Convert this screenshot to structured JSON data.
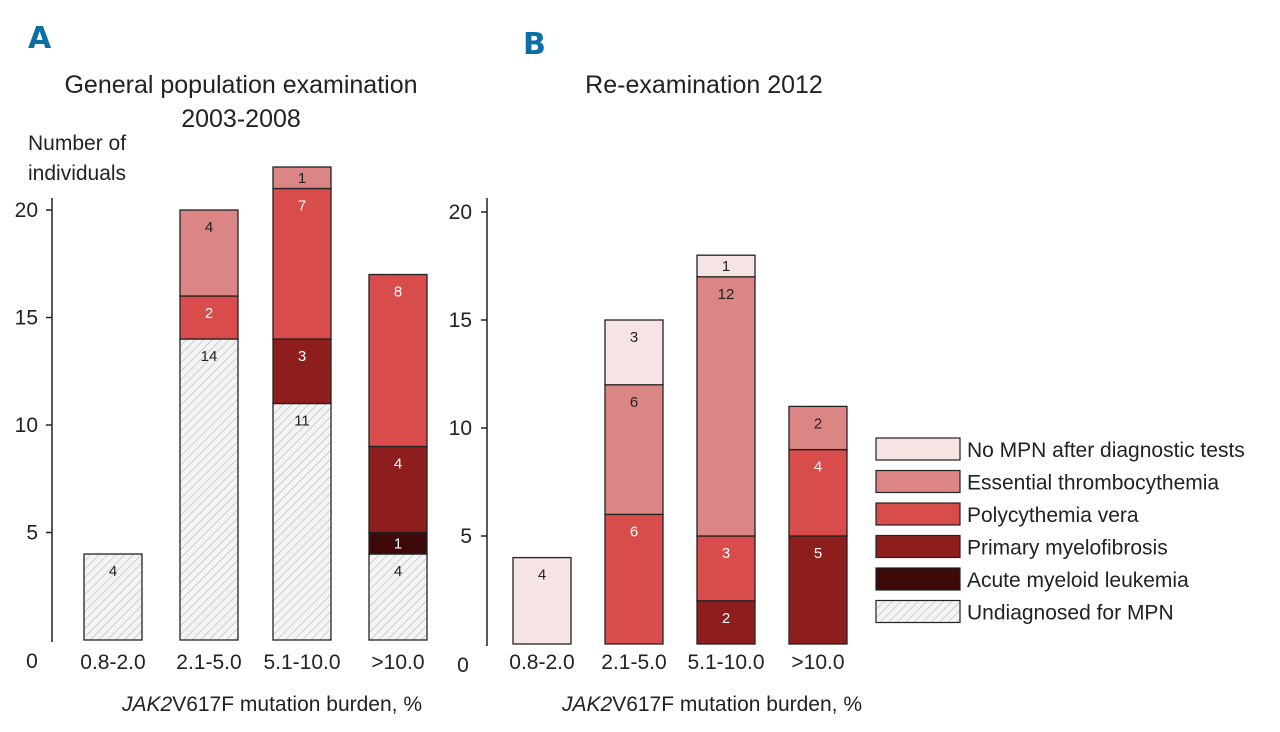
{
  "colors": {
    "none": "#f6e3e3",
    "et": "#dc8585",
    "pv": "#d84c4c",
    "pmf": "#8e1e1e",
    "aml": "#3d0808",
    "undiag": "#f1f1f1",
    "accent": "#0b6fa4"
  },
  "legend": [
    {
      "key": "none",
      "label": "No MPN after diagnostic tests"
    },
    {
      "key": "et",
      "label": "Essential thrombocythemia"
    },
    {
      "key": "pv",
      "label": "Polycythemia vera"
    },
    {
      "key": "pmf",
      "label": "Primary myelofibrosis"
    },
    {
      "key": "aml",
      "label": "Acute myeloid leukemia"
    },
    {
      "key": "undiag",
      "label": "Undiagnosed for MPN"
    }
  ],
  "chart_data": [
    {
      "panel": "A",
      "type": "bar",
      "stacked": true,
      "title_lines": [
        "General population examination",
        "2003-2008"
      ],
      "ylabel_lines": [
        "Number of",
        "individuals"
      ],
      "xlabel_italic": "JAK2",
      "xlabel_rest": "V617F mutation burden, %",
      "categories": [
        "0.8-2.0",
        "2.1-5.0",
        "5.1-10.0",
        ">10.0"
      ],
      "yticks": [
        0,
        5,
        10,
        15,
        20
      ],
      "ylim": [
        0,
        20
      ],
      "series": [
        {
          "key": "undiag",
          "name": "Undiagnosed for MPN",
          "values": [
            4,
            14,
            11,
            4
          ]
        },
        {
          "key": "aml",
          "name": "Acute myeloid leukemia",
          "values": [
            0,
            0,
            0,
            1
          ]
        },
        {
          "key": "pmf",
          "name": "Primary myelofibrosis",
          "values": [
            0,
            0,
            3,
            4
          ]
        },
        {
          "key": "pv",
          "name": "Polycythemia vera",
          "values": [
            0,
            2,
            7,
            8
          ]
        },
        {
          "key": "et",
          "name": "Essential thrombocythemia",
          "values": [
            0,
            4,
            1,
            0
          ]
        }
      ]
    },
    {
      "panel": "B",
      "type": "bar",
      "stacked": true,
      "title_lines": [
        "Re-examination 2012"
      ],
      "xlabel_italic": "JAK2",
      "xlabel_rest": "V617F mutation burden, %",
      "categories": [
        "0.8-2.0",
        "2.1-5.0",
        "5.1-10.0",
        ">10.0"
      ],
      "yticks": [
        0,
        5,
        10,
        15,
        20
      ],
      "ylim": [
        0,
        20
      ],
      "series": [
        {
          "key": "pmf",
          "name": "Primary myelofibrosis",
          "values": [
            0,
            0,
            2,
            5
          ]
        },
        {
          "key": "pv",
          "name": "Polycythemia vera",
          "values": [
            0,
            6,
            3,
            4
          ]
        },
        {
          "key": "et",
          "name": "Essential thrombocythemia",
          "values": [
            0,
            6,
            12,
            2
          ]
        },
        {
          "key": "none",
          "name": "No MPN after diagnostic tests",
          "values": [
            4,
            3,
            1,
            0
          ]
        }
      ]
    }
  ]
}
